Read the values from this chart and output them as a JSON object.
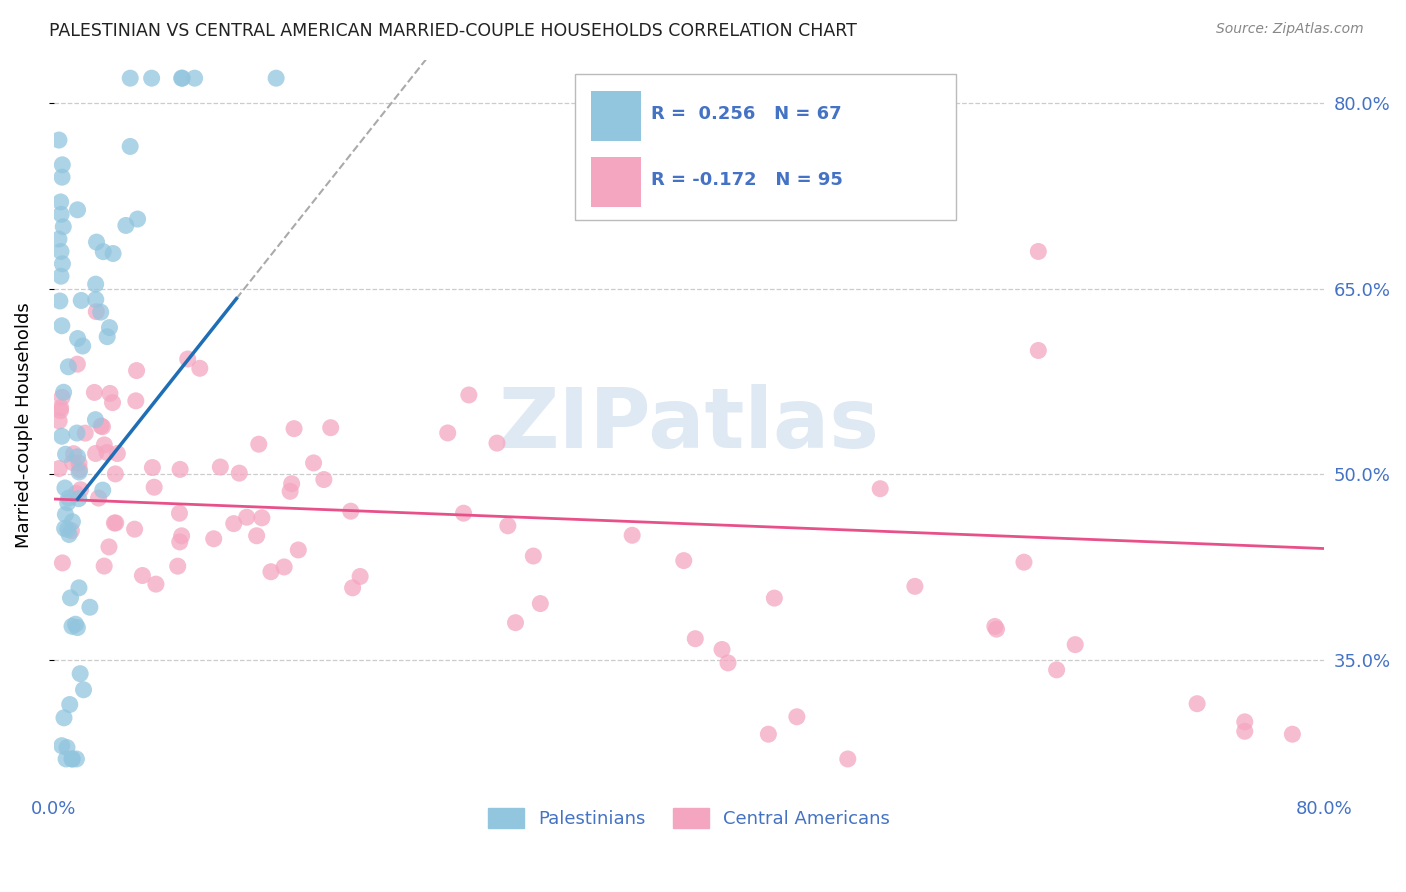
{
  "title": "PALESTINIAN VS CENTRAL AMERICAN MARRIED-COUPLE HOUSEHOLDS CORRELATION CHART",
  "source": "Source: ZipAtlas.com",
  "ylabel": "Married-couple Households",
  "ytick_labels": [
    "35.0%",
    "50.0%",
    "65.0%",
    "80.0%"
  ],
  "ytick_values": [
    0.35,
    0.5,
    0.65,
    0.8
  ],
  "xlim": [
    0.0,
    0.8
  ],
  "ylim": [
    0.245,
    0.835
  ],
  "blue_color": "#92c5de",
  "pink_color": "#f4a6c0",
  "blue_line_color": "#1e6eb5",
  "pink_line_color": "#e8508a",
  "dash_color": "#aaaaaa",
  "watermark": "ZIPatlas",
  "background_color": "#ffffff",
  "grid_color": "#cccccc",
  "title_color": "#222222",
  "axis_label_color": "#4472c4",
  "legend_text_color": "#4472c4",
  "source_color": "#888888"
}
